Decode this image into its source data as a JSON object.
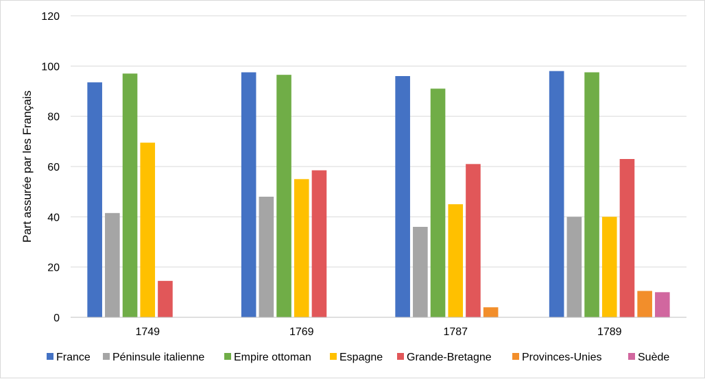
{
  "chart_data": {
    "type": "bar",
    "title": "",
    "xlabel": "",
    "ylabel": "Part assurée par les Français",
    "ylim": [
      0,
      120
    ],
    "yticks": [
      0,
      20,
      40,
      60,
      80,
      100,
      120
    ],
    "grid": true,
    "legend_position": "bottom",
    "categories": [
      "1749",
      "1769",
      "1787",
      "1789"
    ],
    "series": [
      {
        "name": "France",
        "color": "#4472c4",
        "values": [
          93.5,
          97.5,
          96,
          98
        ]
      },
      {
        "name": "Péninsule italienne",
        "color": "#a5a5a5",
        "values": [
          41.5,
          48,
          36,
          40
        ]
      },
      {
        "name": "Empire ottoman",
        "color": "#70ad47",
        "values": [
          97,
          96.5,
          91,
          97.5
        ]
      },
      {
        "name": "Espagne",
        "color": "#ffc000",
        "values": [
          69.5,
          55,
          45,
          40
        ]
      },
      {
        "name": "Grande-Bretagne",
        "color": "#e15759",
        "values": [
          14.5,
          58.5,
          61,
          63
        ]
      },
      {
        "name": "Provinces-Unies",
        "color": "#f28e2b",
        "values": [
          null,
          null,
          4,
          10.5
        ]
      },
      {
        "name": "Suède",
        "color": "#d1679f",
        "values": [
          null,
          null,
          null,
          10
        ]
      }
    ]
  }
}
